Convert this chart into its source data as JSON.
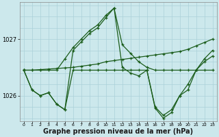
{
  "background_color": "#cce8ec",
  "grid_color": "#aad0d8",
  "line_color": "#1a5c1a",
  "marker_color": "#1a5c1a",
  "xlabel": "Graphe pression niveau de la mer (hPa)",
  "xlabel_fontsize": 7,
  "xlim": [
    -0.5,
    23.5
  ],
  "ylim": [
    1025.55,
    1027.65
  ],
  "yticks": [
    1026,
    1027
  ],
  "xticks": [
    0,
    1,
    2,
    3,
    4,
    5,
    6,
    7,
    8,
    9,
    10,
    11,
    12,
    13,
    14,
    15,
    16,
    17,
    18,
    19,
    20,
    21,
    22,
    23
  ],
  "series": [
    {
      "x": [
        0,
        1,
        2,
        3,
        4,
        5,
        6,
        7,
        8,
        9,
        10,
        11,
        12,
        13,
        14,
        15,
        16,
        17,
        18,
        19,
        20,
        21,
        22,
        23
      ],
      "y": [
        1026.45,
        1026.45,
        1026.46,
        1026.47,
        1026.48,
        1026.49,
        1026.5,
        1026.52,
        1026.54,
        1026.56,
        1026.6,
        1026.62,
        1026.64,
        1026.66,
        1026.68,
        1026.7,
        1026.72,
        1026.74,
        1026.76,
        1026.78,
        1026.82,
        1026.88,
        1026.94,
        1027.0
      ]
    },
    {
      "x": [
        0,
        1,
        2,
        3,
        4,
        5,
        6,
        7,
        8,
        9,
        10,
        11,
        12,
        13,
        14,
        15,
        16,
        17,
        18,
        19,
        20,
        21,
        22,
        23
      ],
      "y": [
        1026.45,
        1026.45,
        1026.45,
        1026.45,
        1026.45,
        1026.65,
        1026.85,
        1027.0,
        1027.15,
        1027.25,
        1027.42,
        1027.55,
        1026.9,
        1026.75,
        1026.6,
        1026.5,
        1026.45,
        1026.45,
        1026.45,
        1026.45,
        1026.45,
        1026.45,
        1026.45,
        1026.45
      ]
    },
    {
      "x": [
        0,
        1,
        2,
        3,
        4,
        5,
        6,
        7,
        8,
        9,
        10,
        11,
        12,
        13,
        14,
        15,
        16,
        17,
        18,
        19,
        20,
        21,
        22,
        23
      ],
      "y": [
        1026.45,
        1026.1,
        1026.0,
        1026.05,
        1025.85,
        1025.75,
        1026.45,
        1026.45,
        1026.45,
        1026.45,
        1026.45,
        1026.45,
        1026.45,
        1026.45,
        1026.45,
        1026.45,
        1025.8,
        1025.65,
        1025.75,
        1026.0,
        1026.2,
        1026.45,
        1026.6,
        1026.7
      ]
    },
    {
      "x": [
        0,
        1,
        2,
        3,
        4,
        5,
        6,
        7,
        8,
        9,
        10,
        11,
        12,
        13,
        14,
        15,
        16,
        17,
        18,
        19,
        20,
        21,
        22,
        23
      ],
      "y": [
        1026.45,
        1026.1,
        1026.0,
        1026.05,
        1025.85,
        1025.75,
        1026.8,
        1026.95,
        1027.1,
        1027.2,
        1027.38,
        1027.55,
        1026.5,
        1026.4,
        1026.35,
        1026.45,
        1025.78,
        1025.6,
        1025.7,
        1026.0,
        1026.1,
        1026.45,
        1026.65,
        1026.8
      ]
    }
  ]
}
